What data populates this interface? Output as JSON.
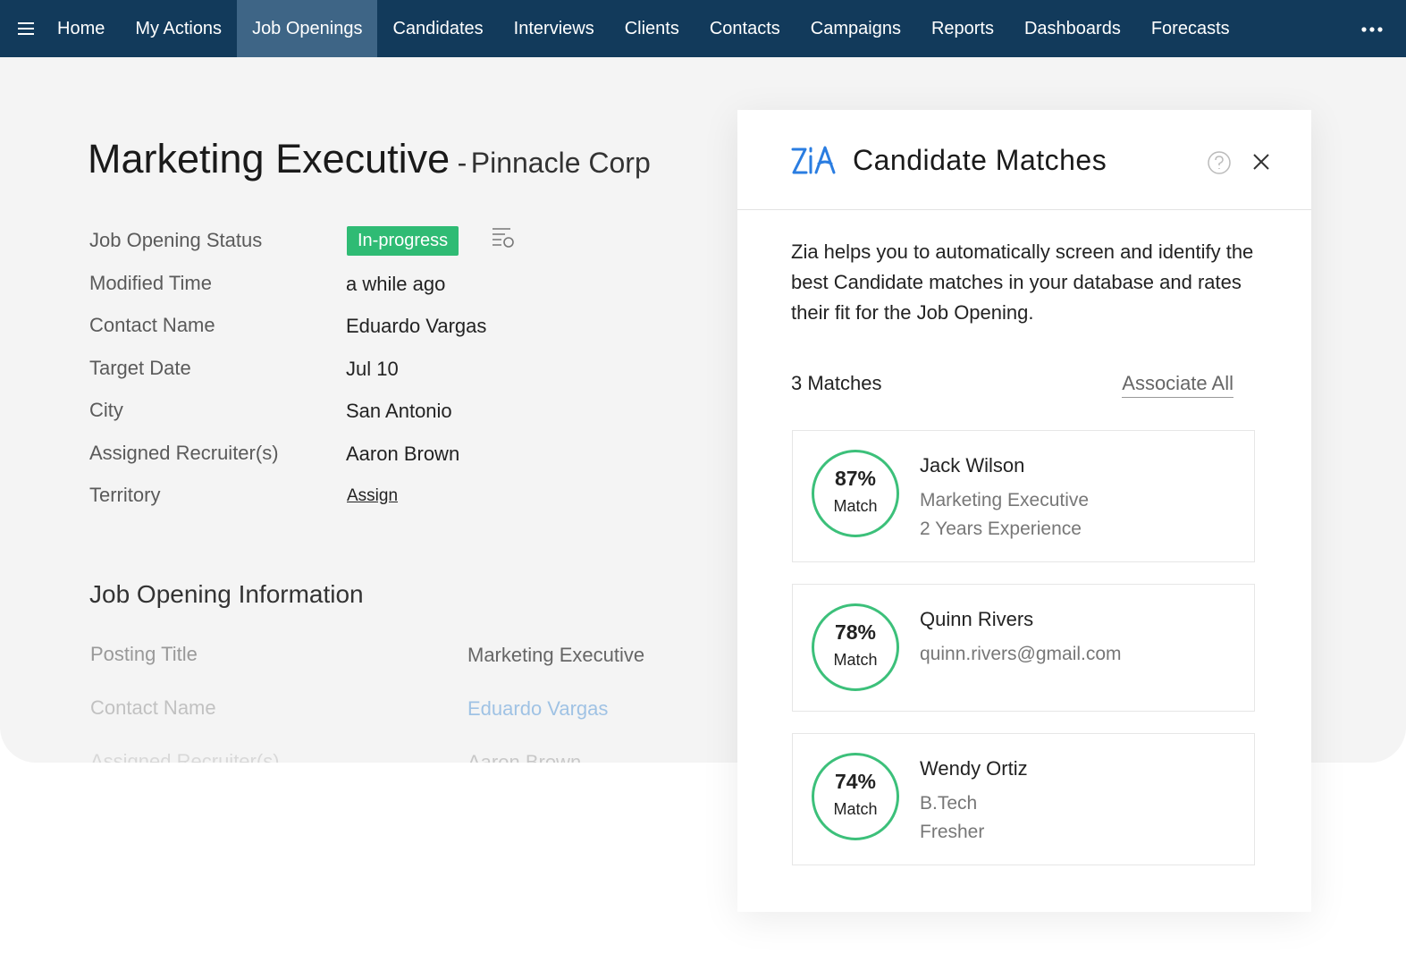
{
  "nav": {
    "items": [
      "Home",
      "My Actions",
      "Job Openings",
      "Candidates",
      "Interviews",
      "Clients",
      "Contacts",
      "Campaigns",
      "Reports",
      "Dashboards",
      "Forecasts"
    ]
  },
  "job": {
    "title": "Marketing Executive",
    "separator": "-",
    "company": "Pinnacle Corp",
    "fields": [
      {
        "label": "Job Opening Status",
        "value": "In-progress"
      },
      {
        "label": "Modified Time",
        "value": "a while ago"
      },
      {
        "label": "Contact Name",
        "value": "Eduardo Vargas"
      },
      {
        "label": "Target Date",
        "value": "Jul 10"
      },
      {
        "label": "City",
        "value": "San Antonio"
      },
      {
        "label": "Assigned Recruiter(s)",
        "value": "Aaron Brown"
      },
      {
        "label": "Territory",
        "value": "Assign"
      }
    ]
  },
  "info_section": {
    "title": "Job Opening Information",
    "rows": [
      {
        "label": "Posting Title",
        "value": "Marketing Executive"
      },
      {
        "label": "Contact Name",
        "value": "Eduardo Vargas"
      },
      {
        "label": "Assigned Recruiter(s)",
        "value": "Aaron Brown"
      }
    ]
  },
  "panel": {
    "title": "Candidate Matches",
    "description": "Zia helps you to automatically screen and identify the best Candidate matches in your database and rates their fit for the Job Opening.",
    "count": "3 Matches",
    "associate": "Associate All",
    "matches": [
      {
        "percent": "87%",
        "match_label": "Match",
        "name": "Jack Wilson",
        "details": [
          "Marketing Executive",
          "2 Years Experience"
        ]
      },
      {
        "percent": "78%",
        "match_label": "Match",
        "name": "Quinn Rivers",
        "details": [
          "quinn.rivers@gmail.com"
        ]
      },
      {
        "percent": "74%",
        "match_label": "Match",
        "name": "Wendy Ortiz",
        "details": [
          "B.Tech",
          "Fresher"
        ]
      }
    ]
  }
}
